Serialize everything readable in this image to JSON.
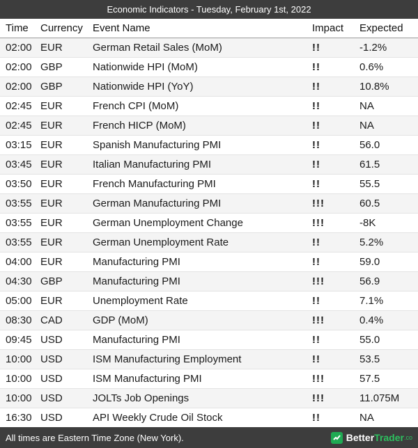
{
  "header": {
    "title": "Economic Indicators - Tuesday, February 1st, 2022"
  },
  "table": {
    "columns": [
      "Time",
      "Currency",
      "Event Name",
      "Impact",
      "Expected"
    ],
    "rows": [
      {
        "time": "02:00",
        "currency": "EUR",
        "event": "German Retail Sales (MoM)",
        "impact": "!!",
        "expected": "-1.2%"
      },
      {
        "time": "02:00",
        "currency": "GBP",
        "event": "Nationwide HPI (MoM)",
        "impact": "!!",
        "expected": "0.6%"
      },
      {
        "time": "02:00",
        "currency": "GBP",
        "event": "Nationwide HPI (YoY)",
        "impact": "!!",
        "expected": "10.8%"
      },
      {
        "time": "02:45",
        "currency": "EUR",
        "event": "French CPI (MoM)",
        "impact": "!!",
        "expected": "NA"
      },
      {
        "time": "02:45",
        "currency": "EUR",
        "event": "French HICP (MoM)",
        "impact": "!!",
        "expected": "NA"
      },
      {
        "time": "03:15",
        "currency": "EUR",
        "event": "Spanish Manufacturing PMI",
        "impact": "!!",
        "expected": "56.0"
      },
      {
        "time": "03:45",
        "currency": "EUR",
        "event": "Italian Manufacturing PMI",
        "impact": "!!",
        "expected": "61.5"
      },
      {
        "time": "03:50",
        "currency": "EUR",
        "event": "French Manufacturing PMI",
        "impact": "!!",
        "expected": "55.5"
      },
      {
        "time": "03:55",
        "currency": "EUR",
        "event": "German Manufacturing PMI",
        "impact": "!!!",
        "expected": "60.5"
      },
      {
        "time": "03:55",
        "currency": "EUR",
        "event": "German Unemployment Change",
        "impact": "!!!",
        "expected": "-8K"
      },
      {
        "time": "03:55",
        "currency": "EUR",
        "event": "German Unemployment Rate",
        "impact": "!!",
        "expected": "5.2%"
      },
      {
        "time": "04:00",
        "currency": "EUR",
        "event": "Manufacturing PMI",
        "impact": "!!",
        "expected": "59.0"
      },
      {
        "time": "04:30",
        "currency": "GBP",
        "event": "Manufacturing PMI",
        "impact": "!!!",
        "expected": "56.9"
      },
      {
        "time": "05:00",
        "currency": "EUR",
        "event": "Unemployment Rate",
        "impact": "!!",
        "expected": "7.1%"
      },
      {
        "time": "08:30",
        "currency": "CAD",
        "event": "GDP (MoM)",
        "impact": "!!!",
        "expected": "0.4%"
      },
      {
        "time": "09:45",
        "currency": "USD",
        "event": "Manufacturing PMI",
        "impact": "!!",
        "expected": "55.0"
      },
      {
        "time": "10:00",
        "currency": "USD",
        "event": "ISM Manufacturing Employment",
        "impact": "!!",
        "expected": "53.5"
      },
      {
        "time": "10:00",
        "currency": "USD",
        "event": "ISM Manufacturing PMI",
        "impact": "!!!",
        "expected": "57.5"
      },
      {
        "time": "10:00",
        "currency": "USD",
        "event": "JOLTs Job Openings",
        "impact": "!!!",
        "expected": "11.075M"
      },
      {
        "time": "16:30",
        "currency": "USD",
        "event": "API Weekly Crude Oil Stock",
        "impact": "!!",
        "expected": "NA"
      }
    ]
  },
  "footer": {
    "note": "All times are Eastern Time Zone (New York).",
    "brand": {
      "part1": "Better",
      "part2": "Trader",
      "suffix": ".co"
    }
  },
  "colors": {
    "header_bg": "#3d3d3d",
    "accent_green": "#1faa53",
    "row_stripe": "#f4f4f4",
    "impact_text": "#1a1a1a"
  }
}
